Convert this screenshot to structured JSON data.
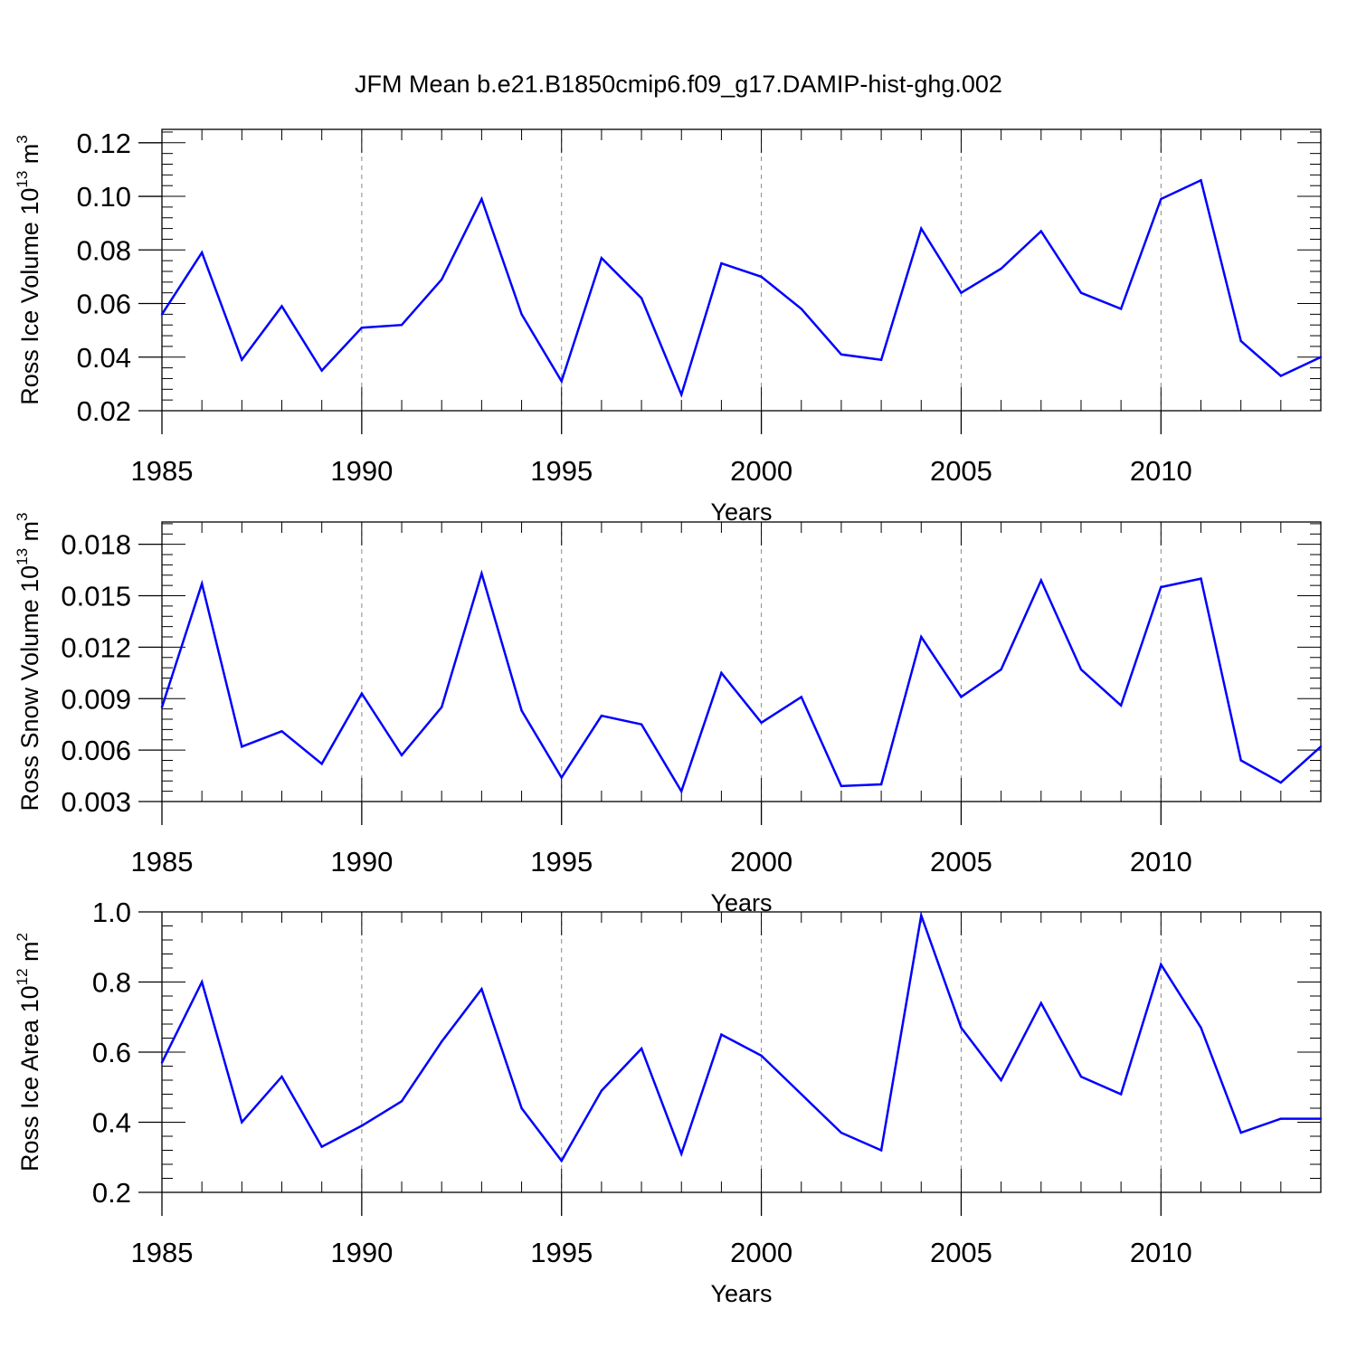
{
  "title": "JFM Mean b.e21.B1850cmip6.f09_g17.DAMIP-hist-ghg.002",
  "colors": {
    "series": "#0000ff",
    "axis": "#000000",
    "grid": "#888888"
  },
  "chart_data": [
    {
      "type": "line",
      "ylabel_main": "Ross Ice Volume 10",
      "ylabel_exp": "13",
      "ylabel_unit": " m",
      "ylabel_unit_exp": "3",
      "xlabel": "Years",
      "xlim": [
        1985,
        2014
      ],
      "ylim": [
        0.02,
        0.125
      ],
      "yticks": [
        0.02,
        0.04,
        0.06,
        0.08,
        0.1,
        0.12
      ],
      "ytick_labels": [
        "0.02",
        "0.04",
        "0.06",
        "0.08",
        "0.10",
        "0.12"
      ],
      "xticks": [
        1985,
        1990,
        1995,
        2000,
        2005,
        2010
      ],
      "xtick_labels": [
        "1985",
        "1990",
        "1995",
        "2000",
        "2005",
        "2010"
      ],
      "grid_x": [
        1990,
        1995,
        2000,
        2005,
        2010
      ],
      "x": [
        1985,
        1986,
        1987,
        1988,
        1989,
        1990,
        1991,
        1992,
        1993,
        1994,
        1995,
        1996,
        1997,
        1998,
        1999,
        2000,
        2001,
        2002,
        2003,
        2004,
        2005,
        2006,
        2007,
        2008,
        2009,
        2010,
        2011,
        2012,
        2013,
        2014
      ],
      "values": [
        0.056,
        0.079,
        0.039,
        0.059,
        0.035,
        0.051,
        0.052,
        0.069,
        0.099,
        0.056,
        0.031,
        0.077,
        0.062,
        0.026,
        0.075,
        0.07,
        0.058,
        0.041,
        0.039,
        0.088,
        0.064,
        0.073,
        0.087,
        0.064,
        0.058,
        0.099,
        0.106,
        0.046,
        0.033,
        0.04
      ]
    },
    {
      "type": "line",
      "ylabel_main": "Ross Snow Volume 10",
      "ylabel_exp": "13",
      "ylabel_unit": " m",
      "ylabel_unit_exp": "3",
      "xlabel": "Years",
      "xlim": [
        1985,
        2014
      ],
      "ylim": [
        0.003,
        0.0193
      ],
      "yticks": [
        0.003,
        0.006,
        0.009,
        0.012,
        0.015,
        0.018
      ],
      "ytick_labels": [
        "0.003",
        "0.006",
        "0.009",
        "0.012",
        "0.015",
        "0.018"
      ],
      "xticks": [
        1985,
        1990,
        1995,
        2000,
        2005,
        2010
      ],
      "xtick_labels": [
        "1985",
        "1990",
        "1995",
        "2000",
        "2005",
        "2010"
      ],
      "grid_x": [
        1990,
        1995,
        2000,
        2005,
        2010
      ],
      "x": [
        1985,
        1986,
        1987,
        1988,
        1989,
        1990,
        1991,
        1992,
        1993,
        1994,
        1995,
        1996,
        1997,
        1998,
        1999,
        2000,
        2001,
        2002,
        2003,
        2004,
        2005,
        2006,
        2007,
        2008,
        2009,
        2010,
        2011,
        2012,
        2013,
        2014
      ],
      "values": [
        0.0085,
        0.0157,
        0.0062,
        0.0071,
        0.0052,
        0.0093,
        0.0057,
        0.0085,
        0.0163,
        0.0083,
        0.0044,
        0.008,
        0.0075,
        0.0036,
        0.0105,
        0.0076,
        0.0091,
        0.0039,
        0.004,
        0.0126,
        0.0091,
        0.0107,
        0.0159,
        0.0107,
        0.0086,
        0.0155,
        0.016,
        0.0054,
        0.0041,
        0.0062
      ]
    },
    {
      "type": "line",
      "ylabel_main": "Ross Ice Area 10",
      "ylabel_exp": "12",
      "ylabel_unit": " m",
      "ylabel_unit_exp": "2",
      "xlabel": "Years",
      "xlim": [
        1985,
        2014
      ],
      "ylim": [
        0.2,
        1.0
      ],
      "yticks": [
        0.2,
        0.4,
        0.6,
        0.8,
        1.0
      ],
      "ytick_labels": [
        "0.2",
        "0.4",
        "0.6",
        "0.8",
        "1.0"
      ],
      "xticks": [
        1985,
        1990,
        1995,
        2000,
        2005,
        2010
      ],
      "xtick_labels": [
        "1985",
        "1990",
        "1995",
        "2000",
        "2005",
        "2010"
      ],
      "grid_x": [
        1990,
        1995,
        2000,
        2005,
        2010
      ],
      "x": [
        1985,
        1986,
        1987,
        1988,
        1989,
        1990,
        1991,
        1992,
        1993,
        1994,
        1995,
        1996,
        1997,
        1998,
        1999,
        2000,
        2001,
        2002,
        2003,
        2004,
        2005,
        2006,
        2007,
        2008,
        2009,
        2010,
        2011,
        2012,
        2013,
        2014
      ],
      "values": [
        0.57,
        0.8,
        0.4,
        0.53,
        0.33,
        0.39,
        0.46,
        0.63,
        0.78,
        0.44,
        0.29,
        0.49,
        0.61,
        0.31,
        0.65,
        0.59,
        0.48,
        0.37,
        0.32,
        0.99,
        0.67,
        0.52,
        0.74,
        0.53,
        0.48,
        0.85,
        0.67,
        0.37,
        0.41,
        0.41
      ]
    }
  ]
}
